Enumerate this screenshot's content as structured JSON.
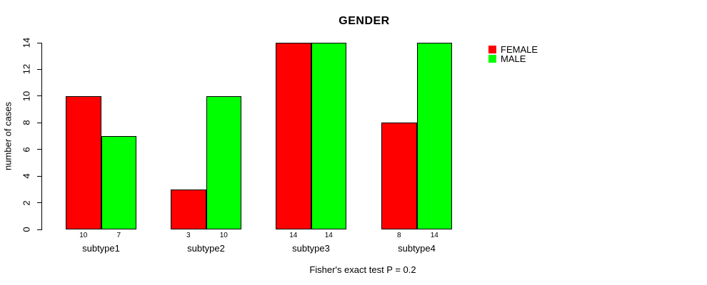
{
  "chart_data": {
    "type": "bar",
    "title": "GENDER",
    "ylabel": "number of cases",
    "xlabel": "",
    "categories": [
      "subtype1",
      "subtype2",
      "subtype3",
      "subtype4"
    ],
    "series": [
      {
        "name": "FEMALE",
        "color": "#ff0000",
        "values": [
          10,
          3,
          14,
          8
        ]
      },
      {
        "name": "MALE",
        "color": "#00ff00",
        "values": [
          7,
          10,
          14,
          14
        ]
      }
    ],
    "ylim": [
      0,
      14
    ],
    "yticks": [
      0,
      2,
      4,
      6,
      8,
      10,
      12,
      14
    ],
    "bar_value_labels": true,
    "grid": false,
    "legend_position": "top-right",
    "annotation": "Fisher's exact test P = 0.2",
    "axis_color": "#000000",
    "background_color": "#ffffff"
  }
}
